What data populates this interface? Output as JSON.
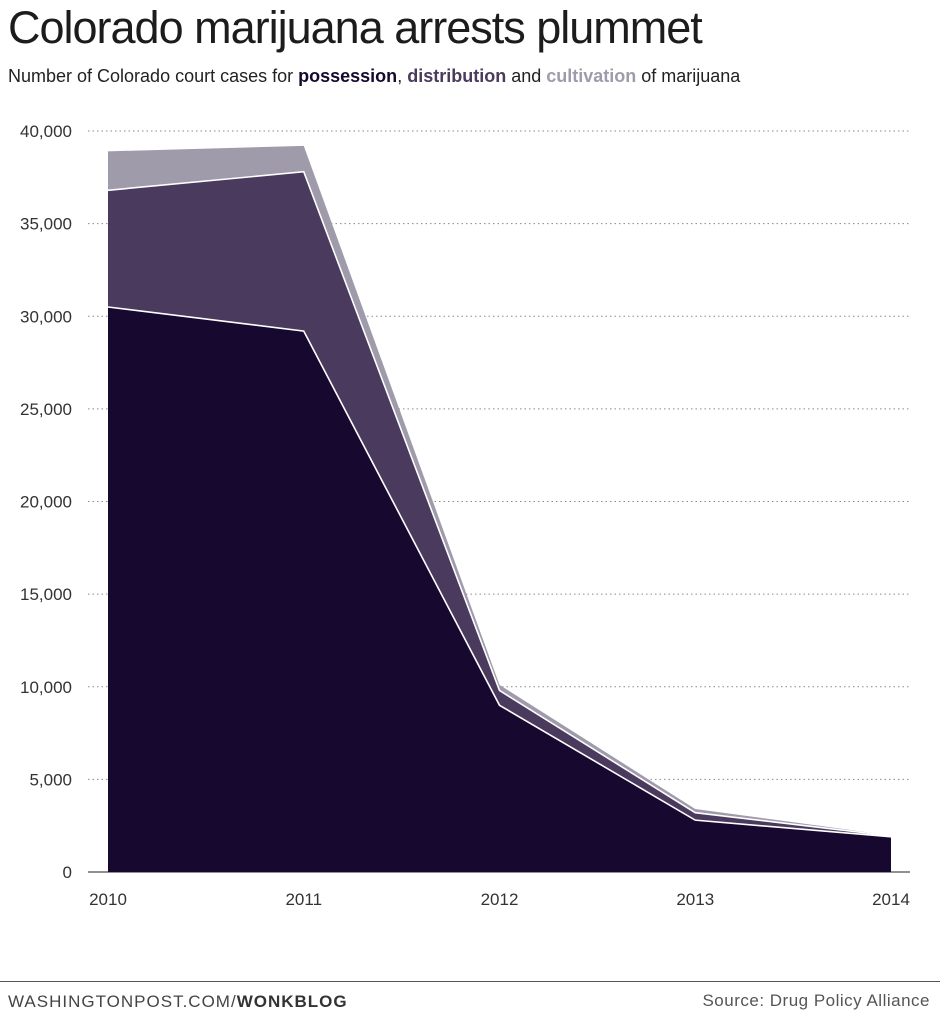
{
  "chart_data": {
    "type": "area",
    "stacked": true,
    "title": "Colorado marijuana arrests plummet",
    "subtitle": {
      "prefix": "Number of Colorado court cases for ",
      "possession": "possession",
      "sep": ", ",
      "distribution": "distribution",
      "and": " and ",
      "cultivation": "cultivation",
      "suffix": " of marijuana"
    },
    "x": [
      "2010",
      "2011",
      "2012",
      "2013",
      "2014"
    ],
    "series": [
      {
        "name": "possession",
        "values": [
          30500,
          29200,
          9000,
          2800,
          1900
        ],
        "color": "#16082e"
      },
      {
        "name": "distribution",
        "values": [
          6300,
          8600,
          800,
          400,
          50
        ],
        "color": "#4a3b5e"
      },
      {
        "name": "cultivation",
        "values": [
          2100,
          1400,
          300,
          200,
          20
        ],
        "color": "#a09bab"
      }
    ],
    "ylim": [
      0,
      40000
    ],
    "yticks": [
      "0",
      "5,000",
      "10,000",
      "15,000",
      "20,000",
      "25,000",
      "30,000",
      "35,000",
      "40,000"
    ],
    "ytick_values": [
      0,
      5000,
      10000,
      15000,
      20000,
      25000,
      30000,
      35000,
      40000
    ],
    "grid": true,
    "xlabel": "",
    "ylabel": ""
  },
  "footer": {
    "site": "WASHINGTONPOST.COM/",
    "section": "WONKBLOG",
    "source": "Source: Drug Policy Alliance"
  }
}
